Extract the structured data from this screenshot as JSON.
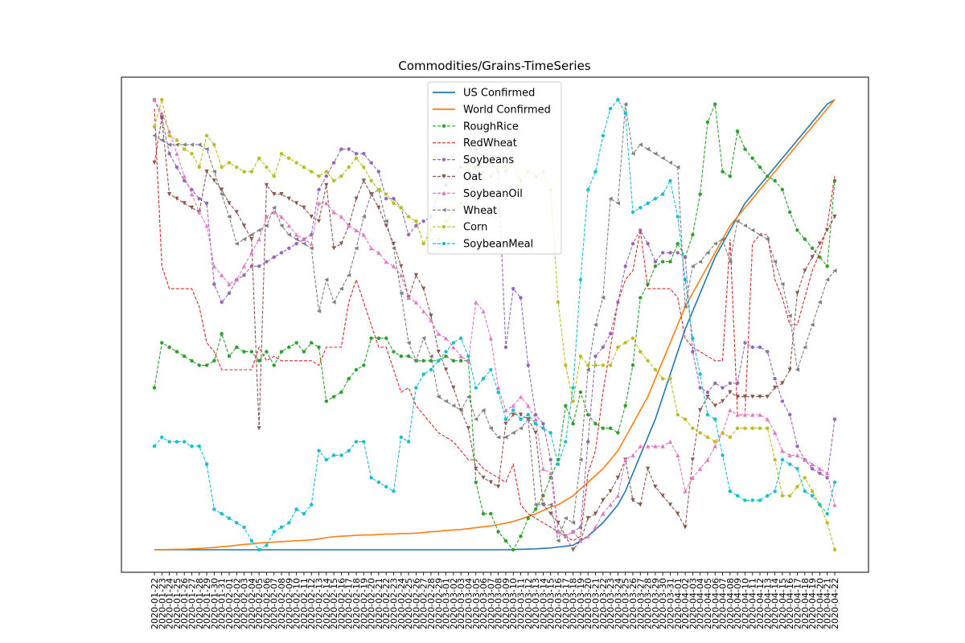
{
  "chart_data": {
    "type": "line",
    "title": "Commodities/Grains-TimeSeries",
    "xlabel": "",
    "ylabel": "",
    "y_axis_ticks_shown": false,
    "grid": false,
    "legend_position": "top-center",
    "ylim": [
      0,
      1
    ],
    "x": [
      "2020-01-22",
      "2020-01-23",
      "2020-01-24",
      "2020-01-25",
      "2020-01-26",
      "2020-01-27",
      "2020-01-28",
      "2020-01-29",
      "2020-01-30",
      "2020-01-31",
      "2020-02-01",
      "2020-02-02",
      "2020-02-03",
      "2020-02-04",
      "2020-02-05",
      "2020-02-06",
      "2020-02-07",
      "2020-02-08",
      "2020-02-09",
      "2020-02-10",
      "2020-02-11",
      "2020-02-12",
      "2020-02-13",
      "2020-02-14",
      "2020-02-15",
      "2020-02-16",
      "2020-02-17",
      "2020-02-18",
      "2020-02-19",
      "2020-02-20",
      "2020-02-21",
      "2020-02-22",
      "2020-02-23",
      "2020-02-24",
      "2020-02-25",
      "2020-02-26",
      "2020-02-27",
      "2020-02-28",
      "2020-02-29",
      "2020-03-01",
      "2020-03-02",
      "2020-03-03",
      "2020-03-04",
      "2020-03-05",
      "2020-03-06",
      "2020-03-07",
      "2020-03-08",
      "2020-03-09",
      "2020-03-10",
      "2020-03-11",
      "2020-03-12",
      "2020-03-13",
      "2020-03-14",
      "2020-03-15",
      "2020-03-16",
      "2020-03-17",
      "2020-03-18",
      "2020-03-19",
      "2020-03-20",
      "2020-03-21",
      "2020-03-22",
      "2020-03-23",
      "2020-03-24",
      "2020-03-25",
      "2020-03-26",
      "2020-03-27",
      "2020-03-28",
      "2020-03-29",
      "2020-03-30",
      "2020-03-31",
      "2020-04-01",
      "2020-04-02",
      "2020-04-03",
      "2020-04-04",
      "2020-04-05",
      "2020-04-06",
      "2020-04-07",
      "2020-04-08",
      "2020-04-09",
      "2020-04-10",
      "2020-04-11",
      "2020-04-12",
      "2020-04-13",
      "2020-04-14",
      "2020-04-15",
      "2020-04-16",
      "2020-04-17",
      "2020-04-18",
      "2020-04-19",
      "2020-04-20",
      "2020-04-21",
      "2020-04-22"
    ],
    "series": [
      {
        "name": "US Confirmed",
        "color": "#1f77b4",
        "style": "solid",
        "marker": "none",
        "values": [
          0,
          0,
          0,
          0,
          0,
          0,
          0,
          0,
          0,
          0,
          0,
          0,
          0,
          0,
          0,
          0,
          0,
          0,
          0,
          0,
          0,
          0,
          0,
          0,
          0,
          0,
          0,
          0,
          0,
          0,
          0,
          0,
          0,
          0,
          0,
          0,
          0,
          0,
          0,
          0,
          0,
          0,
          0,
          0,
          0,
          0,
          0,
          0,
          0.0005,
          0.001,
          0.0015,
          0.002,
          0.003,
          0.004,
          0.006,
          0.008,
          0.01,
          0.02,
          0.03,
          0.045,
          0.06,
          0.08,
          0.1,
          0.13,
          0.17,
          0.21,
          0.25,
          0.29,
          0.34,
          0.39,
          0.44,
          0.49,
          0.53,
          0.57,
          0.61,
          0.65,
          0.68,
          0.71,
          0.74,
          0.77,
          0.79,
          0.81,
          0.83,
          0.85,
          0.87,
          0.89,
          0.91,
          0.93,
          0.95,
          0.97,
          0.99,
          1.0
        ]
      },
      {
        "name": "World Confirmed",
        "color": "#ff7f0e",
        "style": "solid",
        "marker": "none",
        "values": [
          0,
          0,
          0.0005,
          0.001,
          0.001,
          0.002,
          0.003,
          0.004,
          0.005,
          0.007,
          0.008,
          0.01,
          0.012,
          0.013,
          0.015,
          0.016,
          0.017,
          0.018,
          0.019,
          0.02,
          0.021,
          0.022,
          0.024,
          0.027,
          0.029,
          0.03,
          0.031,
          0.032,
          0.033,
          0.033,
          0.034,
          0.035,
          0.035,
          0.036,
          0.036,
          0.037,
          0.038,
          0.04,
          0.041,
          0.043,
          0.044,
          0.045,
          0.047,
          0.049,
          0.051,
          0.053,
          0.056,
          0.059,
          0.063,
          0.068,
          0.074,
          0.08,
          0.087,
          0.095,
          0.1,
          0.11,
          0.12,
          0.135,
          0.15,
          0.165,
          0.18,
          0.2,
          0.22,
          0.25,
          0.28,
          0.31,
          0.34,
          0.38,
          0.42,
          0.46,
          0.5,
          0.54,
          0.57,
          0.6,
          0.63,
          0.66,
          0.69,
          0.72,
          0.74,
          0.76,
          0.78,
          0.8,
          0.82,
          0.84,
          0.86,
          0.88,
          0.9,
          0.92,
          0.94,
          0.96,
          0.98,
          1.0
        ]
      },
      {
        "name": "RoughRice",
        "color": "#2ca02c",
        "style": "dashed",
        "marker": "dot",
        "values": [
          0.36,
          0.46,
          0.45,
          0.44,
          0.43,
          0.42,
          0.41,
          0.41,
          0.42,
          0.48,
          0.43,
          0.45,
          0.44,
          0.44,
          0.42,
          0.44,
          0.41,
          0.44,
          0.45,
          0.46,
          0.44,
          0.46,
          0.45,
          0.33,
          0.34,
          0.35,
          0.38,
          0.4,
          0.41,
          0.47,
          0.47,
          0.47,
          0.44,
          0.43,
          0.43,
          0.42,
          0.42,
          0.42,
          0.42,
          0.43,
          0.42,
          0.42,
          0.42,
          0.15,
          0.08,
          0.08,
          0.04,
          0.02,
          0.0,
          0.03,
          0.07,
          0.09,
          0.12,
          0.16,
          0.2,
          0.32,
          0.28,
          0.35,
          0.3,
          0.28,
          0.27,
          0.27,
          0.26,
          0.32,
          0.41,
          0.56,
          0.59,
          0.63,
          0.64,
          0.64,
          0.68,
          0.65,
          0.7,
          0.79,
          0.95,
          0.99,
          0.84,
          0.83,
          0.93,
          0.89,
          0.87,
          0.85,
          0.83,
          0.82,
          0.8,
          0.75,
          0.71,
          0.69,
          0.67,
          0.65,
          0.63,
          0.82
        ]
      },
      {
        "name": "RedWheat",
        "color": "#d62728",
        "style": "dashed",
        "marker": "none",
        "values": [
          0.98,
          0.63,
          0.58,
          0.58,
          0.58,
          0.58,
          0.54,
          0.46,
          0.44,
          0.4,
          0.4,
          0.4,
          0.4,
          0.4,
          0.45,
          0.42,
          0.43,
          0.42,
          0.42,
          0.42,
          0.42,
          0.42,
          0.41,
          0.45,
          0.45,
          0.45,
          0.55,
          0.6,
          0.55,
          0.5,
          0.45,
          0.45,
          0.4,
          0.35,
          0.36,
          0.32,
          0.3,
          0.28,
          0.26,
          0.25,
          0.24,
          0.22,
          0.2,
          0.2,
          0.18,
          0.17,
          0.16,
          0.15,
          0.19,
          0.1,
          0.08,
          0.07,
          0.06,
          0.05,
          0.04,
          0.03,
          0.02,
          0.03,
          0.17,
          0.22,
          0.35,
          0.45,
          0.55,
          0.6,
          0.62,
          0.71,
          0.58,
          0.58,
          0.58,
          0.58,
          0.56,
          0.47,
          0.45,
          0.44,
          0.43,
          0.42,
          0.42,
          0.69,
          0.3,
          0.3,
          0.68,
          0.7,
          0.7,
          0.6,
          0.56,
          0.5,
          0.5,
          0.56,
          0.62,
          0.66,
          0.72,
          0.83
        ]
      },
      {
        "name": "Soybeans",
        "color": "#9467bd",
        "style": "dashed",
        "marker": "dot",
        "values": [
          1.0,
          0.96,
          0.88,
          0.85,
          0.82,
          0.8,
          0.78,
          0.77,
          0.59,
          0.55,
          0.57,
          0.6,
          0.61,
          0.63,
          0.63,
          0.64,
          0.65,
          0.66,
          0.67,
          0.68,
          0.69,
          0.7,
          0.8,
          0.83,
          0.86,
          0.89,
          0.89,
          0.88,
          0.88,
          0.86,
          0.84,
          0.78,
          0.78,
          0.76,
          0.7,
          0.72,
          0.73,
          0.74,
          0.79,
          0.81,
          0.83,
          0.85,
          0.87,
          0.89,
          0.87,
          0.86,
          0.84,
          0.45,
          0.58,
          0.56,
          0.41,
          0.3,
          0.28,
          0.2,
          0.04,
          0.03,
          0.04,
          0.05,
          0.24,
          0.43,
          0.45,
          0.48,
          0.55,
          0.63,
          0.68,
          0.71,
          0.68,
          0.64,
          0.66,
          0.66,
          0.66,
          0.65,
          0.44,
          0.36,
          0.35,
          0.37,
          0.36,
          0.37,
          0.37,
          0.46,
          0.45,
          0.45,
          0.44,
          0.38,
          0.33,
          0.3,
          0.23,
          0.2,
          0.18,
          0.17,
          0.16,
          0.29
        ]
      },
      {
        "name": "Oat",
        "color": "#8c564b",
        "style": "dashed",
        "marker": "tri_down",
        "values": [
          0.86,
          0.96,
          0.79,
          0.78,
          0.77,
          0.76,
          0.75,
          0.84,
          0.82,
          0.8,
          0.77,
          0.75,
          0.72,
          0.69,
          0.27,
          0.81,
          0.79,
          0.79,
          0.78,
          0.77,
          0.76,
          0.74,
          0.73,
          0.81,
          0.67,
          0.68,
          0.72,
          0.78,
          0.82,
          0.79,
          0.76,
          0.72,
          0.68,
          0.63,
          0.56,
          0.61,
          0.58,
          0.52,
          0.44,
          0.4,
          0.36,
          0.31,
          0.27,
          0.18,
          0.16,
          0.15,
          0.14,
          0.28,
          0.3,
          0.3,
          0.29,
          0.26,
          0.1,
          0.08,
          0.06,
          0.03,
          0.0,
          0.02,
          0.07,
          0.08,
          0.11,
          0.13,
          0.16,
          0.2,
          0.11,
          0.1,
          0.18,
          0.14,
          0.12,
          0.1,
          0.08,
          0.05,
          0.2,
          0.31,
          0.34,
          0.32,
          0.33,
          0.35,
          0.34,
          0.34,
          0.34,
          0.34,
          0.34,
          0.36,
          0.37,
          0.4,
          0.57,
          0.62,
          0.65,
          0.68,
          0.71,
          0.74
        ]
      },
      {
        "name": "SoybeanOil",
        "color": "#e377c2",
        "style": "dashed",
        "marker": "tri_up",
        "values": [
          1.0,
          0.97,
          0.93,
          0.88,
          0.83,
          0.79,
          0.75,
          0.72,
          0.63,
          0.61,
          0.59,
          0.6,
          0.63,
          0.66,
          0.69,
          0.74,
          0.75,
          0.74,
          0.72,
          0.7,
          0.69,
          0.68,
          0.77,
          0.77,
          0.75,
          0.74,
          0.72,
          0.71,
          0.7,
          0.67,
          0.66,
          0.64,
          0.63,
          0.61,
          0.56,
          0.55,
          0.53,
          0.51,
          0.48,
          0.47,
          0.45,
          0.43,
          0.42,
          0.55,
          0.53,
          0.47,
          0.36,
          0.31,
          0.32,
          0.34,
          0.32,
          0.29,
          0.18,
          0.17,
          0.04,
          0.03,
          0.04,
          0.02,
          0.03,
          0.05,
          0.08,
          0.1,
          0.12,
          0.2,
          0.21,
          0.23,
          0.23,
          0.23,
          0.23,
          0.24,
          0.21,
          0.13,
          0.16,
          0.18,
          0.2,
          0.23,
          0.26,
          0.31,
          0.3,
          0.3,
          0.3,
          0.3,
          0.29,
          0.26,
          0.22,
          0.21,
          0.21,
          0.2,
          0.19,
          0.18,
          0.17,
          0.1
        ]
      },
      {
        "name": "Wheat",
        "color": "#7f7f7f",
        "style": "dashed",
        "marker": "tri_left",
        "values": [
          0.92,
          0.91,
          0.9,
          0.9,
          0.9,
          0.9,
          0.9,
          0.89,
          0.84,
          0.79,
          0.74,
          0.68,
          0.69,
          0.7,
          0.71,
          0.72,
          0.76,
          0.72,
          0.7,
          0.69,
          0.68,
          0.67,
          0.53,
          0.6,
          0.55,
          0.58,
          0.61,
          0.67,
          0.74,
          0.79,
          0.8,
          0.73,
          0.67,
          0.57,
          0.46,
          0.42,
          0.47,
          0.43,
          0.34,
          0.33,
          0.32,
          0.31,
          0.34,
          0.29,
          0.31,
          0.27,
          0.25,
          0.25,
          0.26,
          0.27,
          0.29,
          0.1,
          0.1,
          0.1,
          0.02,
          0.07,
          0.06,
          0.2,
          0.4,
          0.5,
          0.56,
          0.78,
          0.77,
          0.99,
          0.88,
          0.9,
          0.89,
          0.88,
          0.87,
          0.86,
          0.85,
          0.54,
          0.63,
          0.64,
          0.66,
          0.68,
          0.69,
          0.64,
          0.73,
          0.72,
          0.71,
          0.7,
          0.69,
          0.64,
          0.59,
          0.52,
          0.4,
          0.45,
          0.5,
          0.55,
          0.6,
          0.62
        ]
      },
      {
        "name": "Corn",
        "color": "#bcbd22",
        "style": "dashed",
        "marker": "dot",
        "values": [
          0.94,
          1.0,
          0.92,
          0.91,
          0.89,
          0.88,
          0.85,
          0.92,
          0.9,
          0.85,
          0.86,
          0.85,
          0.84,
          0.84,
          0.87,
          0.85,
          0.83,
          0.88,
          0.87,
          0.86,
          0.85,
          0.84,
          0.83,
          0.84,
          0.82,
          0.83,
          0.85,
          0.87,
          0.85,
          0.82,
          0.8,
          0.79,
          0.77,
          0.76,
          0.74,
          0.73,
          0.68,
          0.71,
          0.69,
          0.73,
          0.75,
          0.77,
          0.86,
          0.85,
          0.84,
          0.83,
          0.85,
          0.84,
          0.86,
          0.82,
          0.84,
          0.83,
          0.84,
          0.8,
          0.55,
          0.41,
          0.33,
          0.43,
          0.41,
          0.41,
          0.41,
          0.41,
          0.45,
          0.46,
          0.47,
          0.44,
          0.42,
          0.4,
          0.38,
          0.38,
          0.3,
          0.29,
          0.27,
          0.26,
          0.25,
          0.24,
          0.26,
          0.25,
          0.27,
          0.27,
          0.27,
          0.27,
          0.27,
          0.2,
          0.12,
          0.12,
          0.14,
          0.16,
          0.13,
          0.1,
          0.06,
          0.0
        ]
      },
      {
        "name": "SoybeanMeal",
        "color": "#17becf",
        "style": "dashed",
        "marker": "dot",
        "values": [
          0.23,
          0.25,
          0.24,
          0.24,
          0.24,
          0.23,
          0.23,
          0.19,
          0.09,
          0.08,
          0.07,
          0.06,
          0.05,
          0.02,
          0.0,
          0.01,
          0.04,
          0.05,
          0.06,
          0.09,
          0.08,
          0.1,
          0.22,
          0.2,
          0.21,
          0.21,
          0.22,
          0.24,
          0.24,
          0.16,
          0.15,
          0.14,
          0.13,
          0.25,
          0.24,
          0.36,
          0.39,
          0.4,
          0.42,
          0.44,
          0.46,
          0.47,
          0.43,
          0.36,
          0.38,
          0.4,
          0.35,
          0.29,
          0.31,
          0.29,
          0.3,
          0.28,
          0.27,
          0.26,
          0.19,
          0.24,
          0.36,
          0.6,
          0.8,
          0.84,
          0.92,
          0.98,
          1.0,
          0.97,
          0.75,
          0.76,
          0.77,
          0.78,
          0.79,
          0.82,
          0.74,
          0.6,
          0.47,
          0.39,
          0.3,
          0.29,
          0.21,
          0.13,
          0.12,
          0.11,
          0.11,
          0.11,
          0.12,
          0.13,
          0.2,
          0.19,
          0.18,
          0.13,
          0.12,
          0.1,
          0.08,
          0.15
        ]
      }
    ]
  }
}
